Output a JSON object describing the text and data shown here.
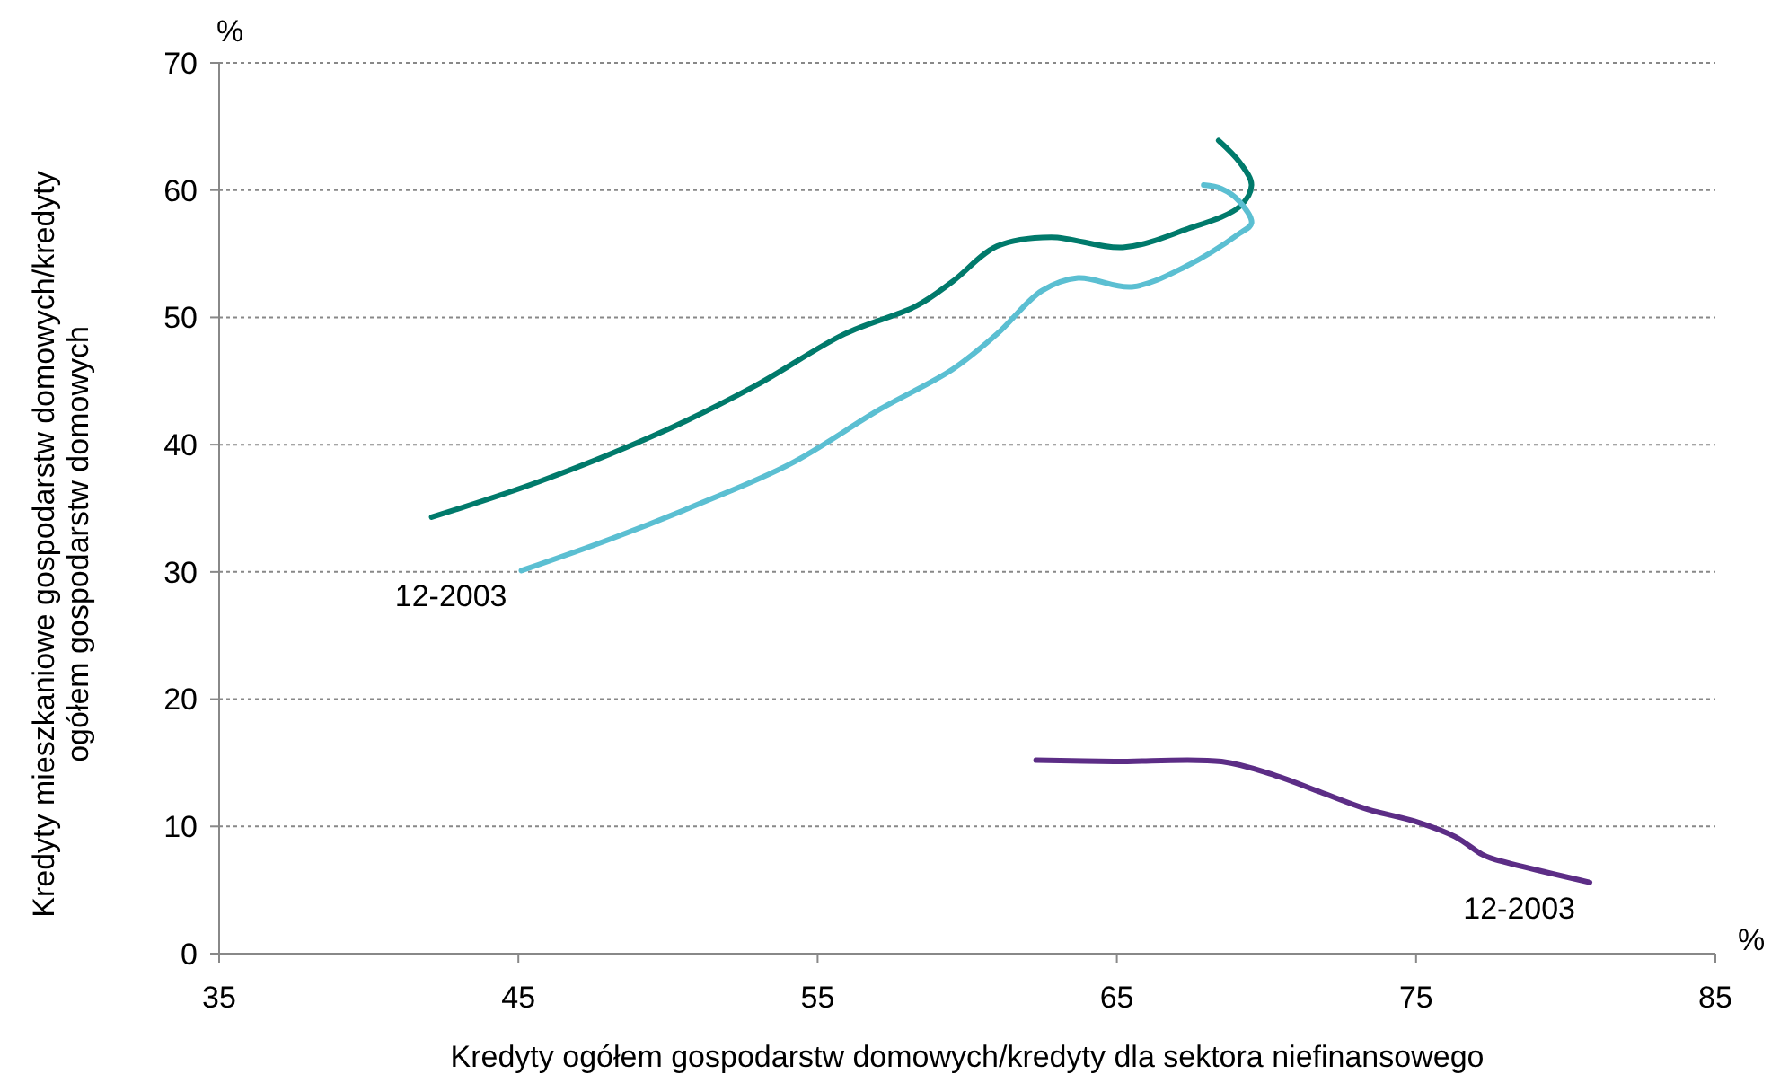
{
  "chart_data": {
    "type": "line",
    "xlabel": "Kredyty ogółem gospodarstw domowych/kredyty dla sektora niefinansowego",
    "ylabel": "Kredyty mieszkaniowe gospodarstw domowych/kredyty ogółem gospodarstw domowych",
    "xlim": [
      35,
      85
    ],
    "xticks": [
      35,
      45,
      55,
      65,
      75,
      85
    ],
    "ylim": [
      0,
      70
    ],
    "yticks": [
      0,
      10,
      20,
      30,
      40,
      50,
      60,
      70
    ],
    "grid": "y",
    "line_style": "solid",
    "series": [
      {
        "color": "#007a6b",
        "x": [
          42.1,
          45.7,
          49.9,
          52.9,
          55.9,
          58.3,
          59.5,
          61,
          62.8,
          65.2,
          67.3,
          69.1,
          69.5,
          69.1,
          68.4
        ],
        "values": [
          34.3,
          37.1,
          41.1,
          44.6,
          48.7,
          50.9,
          52.8,
          55.6,
          56.3,
          55.5,
          56.9,
          58.7,
          60.4,
          62.2,
          63.9
        ]
      },
      {
        "color": "#5bbfd2",
        "x": [
          45.1,
          48.1,
          51.1,
          54.1,
          57.1,
          59.5,
          61,
          62.5,
          63.7,
          65.5,
          67.3,
          69.1,
          69.5,
          69.1,
          68.5,
          67.9
        ],
        "values": [
          30.1,
          32.6,
          35.4,
          38.5,
          42.8,
          45.9,
          48.7,
          52.1,
          53.1,
          52.4,
          54,
          56.6,
          57.4,
          59.1,
          60.1,
          60.4
        ]
      },
      {
        "color": "#5c2d86",
        "x": [
          62.3,
          64.9,
          68.5,
          70.3,
          71.8,
          73.3,
          75.1,
          76.3,
          77.2,
          77.5,
          80.8
        ],
        "values": [
          15.2,
          15.1,
          15.1,
          14,
          12.7,
          11.4,
          10.3,
          9.2,
          7.8,
          7.5,
          5.6
        ]
      }
    ],
    "annotations": [
      "%",
      "%",
      {
        "text": "12-2003",
        "x": 45.1,
        "y": 30.1
      },
      {
        "text": "12-2003",
        "x": 80.8,
        "y": 5.6
      }
    ]
  }
}
